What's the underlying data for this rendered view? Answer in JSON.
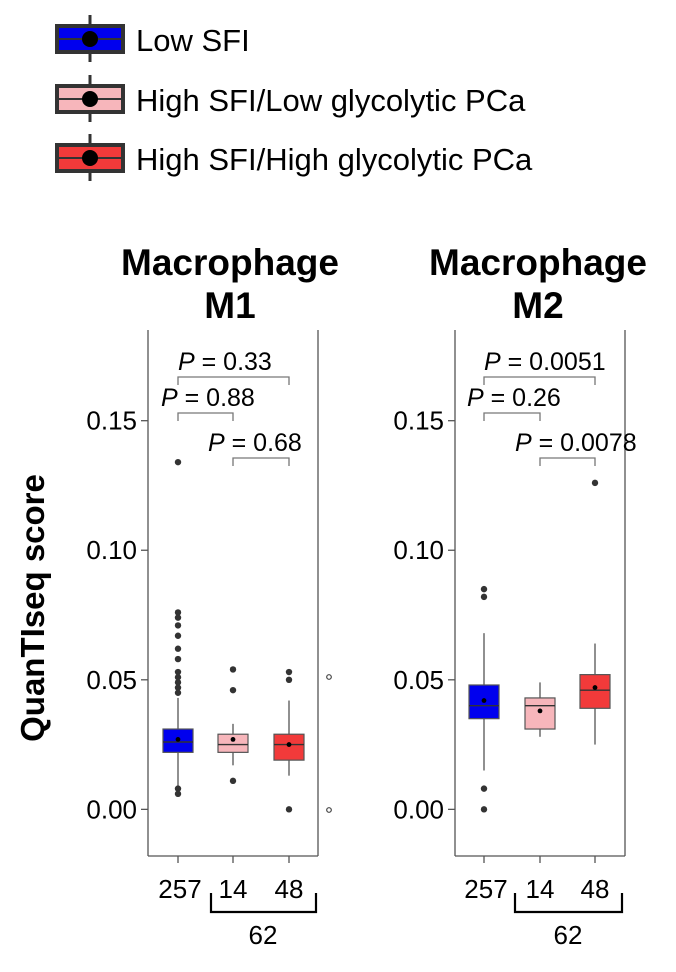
{
  "legend": {
    "items": [
      {
        "label": "Low SFI",
        "color": "#0000ee"
      },
      {
        "label": "High SFI/Low glycolytic PCa",
        "color": "#f7b6bb"
      },
      {
        "label": "High SFI/High glycolytic PCa",
        "color": "#f23a3a"
      }
    ]
  },
  "y_axis_label": "QuanTIseq score",
  "group_sizes": {
    "labels": [
      "257",
      "14",
      "48"
    ],
    "combined_label": "62"
  },
  "chart_data": [
    {
      "type": "box",
      "title_line1": "Macrophage",
      "title_line2": "M1",
      "ylabel": "QuanTIseq score",
      "ylim": [
        -0.018,
        0.185
      ],
      "yticks": [
        0.0,
        0.05,
        0.1,
        0.15
      ],
      "ytick_labels": [
        "0.00",
        "0.05",
        "0.10",
        "0.15"
      ],
      "categories": [
        "257",
        "14",
        "48"
      ],
      "series": [
        {
          "name": "Low SFI",
          "color": "#0000ee",
          "q1": 0.022,
          "median": 0.026,
          "q3": 0.031,
          "whisker_low": 0.009,
          "whisker_high": 0.043,
          "mean": 0.027,
          "outliers": [
            0.006,
            0.008,
            0.045,
            0.047,
            0.049,
            0.051,
            0.053,
            0.058,
            0.062,
            0.067,
            0.071,
            0.074,
            0.076,
            0.134
          ]
        },
        {
          "name": "High SFI/Low glycolytic PCa",
          "color": "#f7b6bb",
          "q1": 0.022,
          "median": 0.025,
          "q3": 0.029,
          "whisker_low": 0.017,
          "whisker_high": 0.033,
          "mean": 0.027,
          "outliers": [
            0.011,
            0.046,
            0.054
          ]
        },
        {
          "name": "High SFI/High glycolytic PCa",
          "color": "#f23a3a",
          "q1": 0.019,
          "median": 0.025,
          "q3": 0.029,
          "whisker_low": 0.013,
          "whisker_high": 0.042,
          "mean": 0.025,
          "outliers": [
            0.0,
            0.05,
            0.053
          ]
        }
      ],
      "comparisons": [
        {
          "from": 0,
          "to": 2,
          "p_prefix": "P",
          "p_value": " = 0.33"
        },
        {
          "from": 0,
          "to": 1,
          "p_prefix": "P",
          "p_value": " = 0.88"
        },
        {
          "from": 1,
          "to": 2,
          "p_prefix": "P",
          "p_value": " = 0.68"
        }
      ]
    },
    {
      "type": "box",
      "title_line1": "Macrophage",
      "title_line2": "M2",
      "ylabel": "QuanTIseq score",
      "ylim": [
        -0.018,
        0.185
      ],
      "yticks": [
        0.0,
        0.05,
        0.1,
        0.15
      ],
      "ytick_labels": [
        "0.00",
        "0.05",
        "0.10",
        "0.15"
      ],
      "categories": [
        "257",
        "14",
        "48"
      ],
      "series": [
        {
          "name": "Low SFI",
          "color": "#0000ee",
          "q1": 0.035,
          "median": 0.04,
          "q3": 0.048,
          "whisker_low": 0.015,
          "whisker_high": 0.068,
          "mean": 0.042,
          "outliers": [
            0.0,
            0.008,
            0.082,
            0.085
          ]
        },
        {
          "name": "High SFI/Low glycolytic PCa",
          "color": "#f7b6bb",
          "q1": 0.031,
          "median": 0.04,
          "q3": 0.043,
          "whisker_low": 0.028,
          "whisker_high": 0.049,
          "mean": 0.038,
          "outliers": []
        },
        {
          "name": "High SFI/High glycolytic PCa",
          "color": "#f23a3a",
          "q1": 0.039,
          "median": 0.046,
          "q3": 0.052,
          "whisker_low": 0.025,
          "whisker_high": 0.064,
          "mean": 0.047,
          "outliers": [
            0.126
          ]
        }
      ],
      "comparisons": [
        {
          "from": 0,
          "to": 2,
          "p_prefix": "P",
          "p_value": " = 0.0051"
        },
        {
          "from": 0,
          "to": 1,
          "p_prefix": "P",
          "p_value": " = 0.26"
        },
        {
          "from": 1,
          "to": 2,
          "p_prefix": "P",
          "p_value": " = 0.0078"
        }
      ]
    }
  ]
}
